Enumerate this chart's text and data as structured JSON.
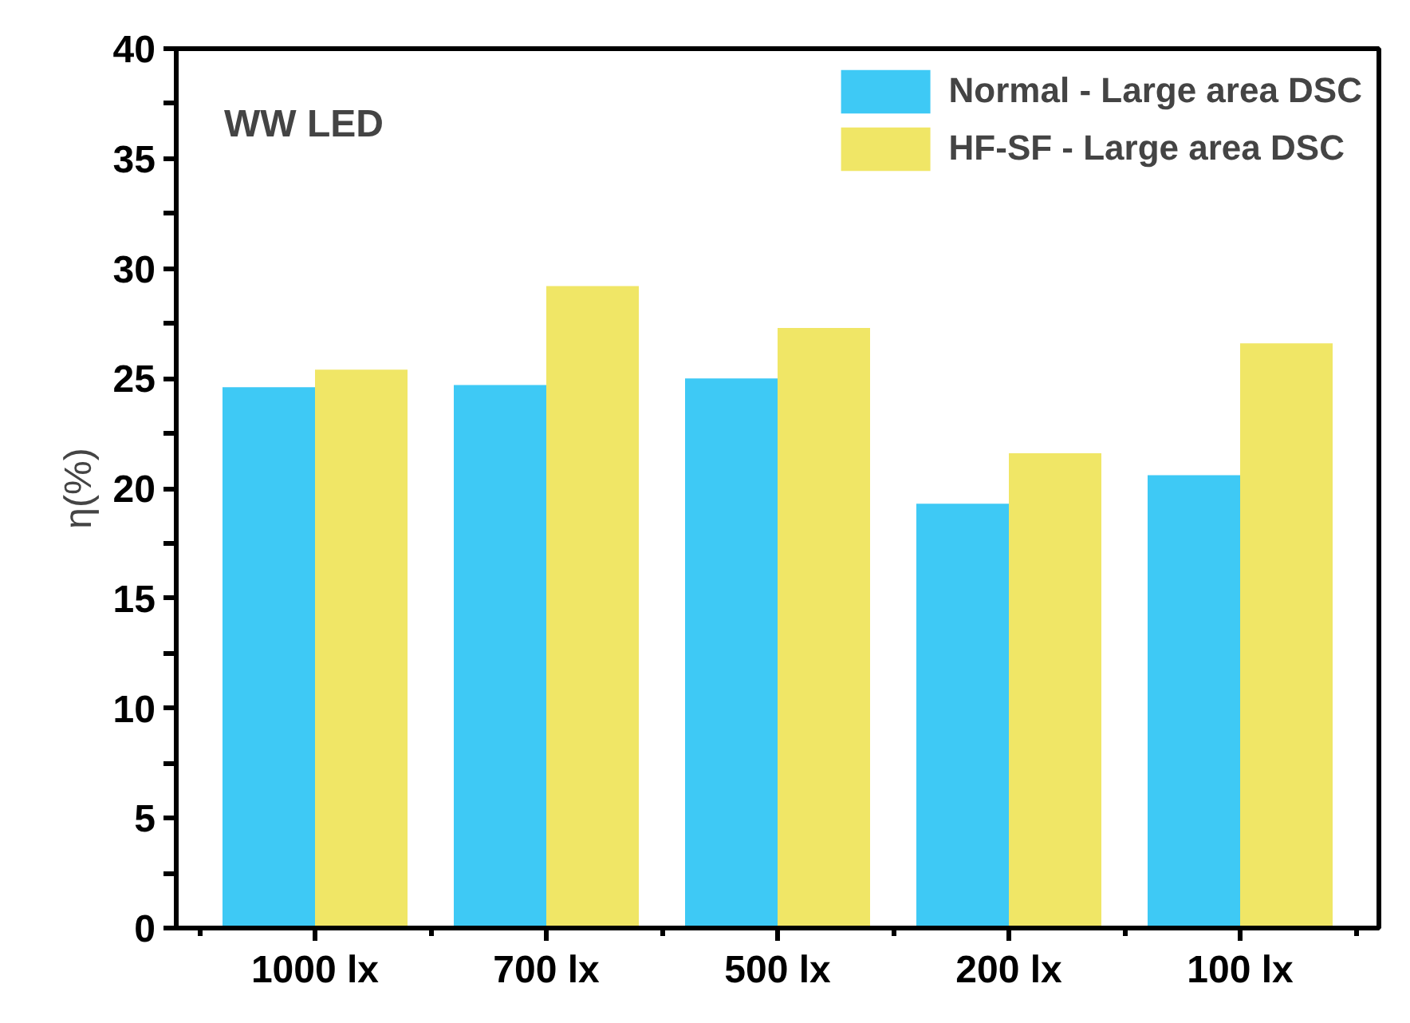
{
  "chart_data": {
    "type": "bar",
    "ylabel": "η(%)",
    "categories": [
      "1000 lx",
      "700 lx",
      "500 lx",
      "200 lx",
      "100 lx"
    ],
    "series": [
      {
        "name": "Normal - Large area DSC",
        "color": "#3ec9f5",
        "values": [
          24.6,
          24.7,
          25.0,
          19.3,
          20.6
        ]
      },
      {
        "name": "HF-SF - Large area DSC",
        "color": "#f0e666",
        "values": [
          25.4,
          29.2,
          27.3,
          21.6,
          26.6
        ]
      }
    ],
    "ylim": [
      0,
      40
    ],
    "yticks": [
      0,
      {
        "value": 2.5,
        "label": null
      },
      5,
      {
        "value": 7.5,
        "label": null
      },
      10,
      {
        "value": 12.5,
        "label": null
      },
      15,
      {
        "value": 17.5,
        "label": null
      },
      20,
      {
        "value": 22.5,
        "label": null
      },
      25,
      {
        "value": 27.5,
        "label": null
      },
      30,
      {
        "value": 32.5,
        "label": null
      },
      35,
      {
        "value": 37.5,
        "label": null
      },
      40
    ],
    "annotations": [
      "WW LED"
    ],
    "legend": "top right",
    "grid": false
  }
}
